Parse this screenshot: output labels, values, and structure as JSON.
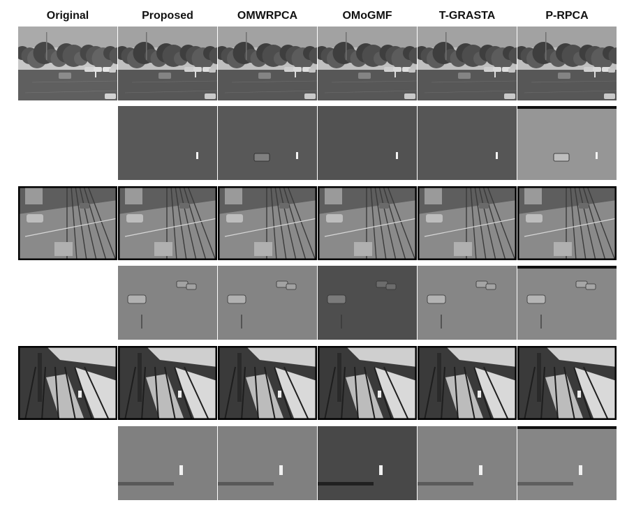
{
  "columns": [
    "Original",
    "Proposed",
    "OMWRPCA",
    "OMoGMF",
    "T-GRASTA",
    "P-RPCA"
  ],
  "rows": [
    {
      "scene": "parking-lot",
      "kind": "frame"
    },
    {
      "scene": "parking-lot",
      "kind": "foreground"
    },
    {
      "scene": "street-railway",
      "kind": "frame"
    },
    {
      "scene": "street-railway",
      "kind": "foreground"
    },
    {
      "scene": "sunlit-rails",
      "kind": "frame"
    },
    {
      "scene": "sunlit-rails",
      "kind": "foreground"
    }
  ]
}
